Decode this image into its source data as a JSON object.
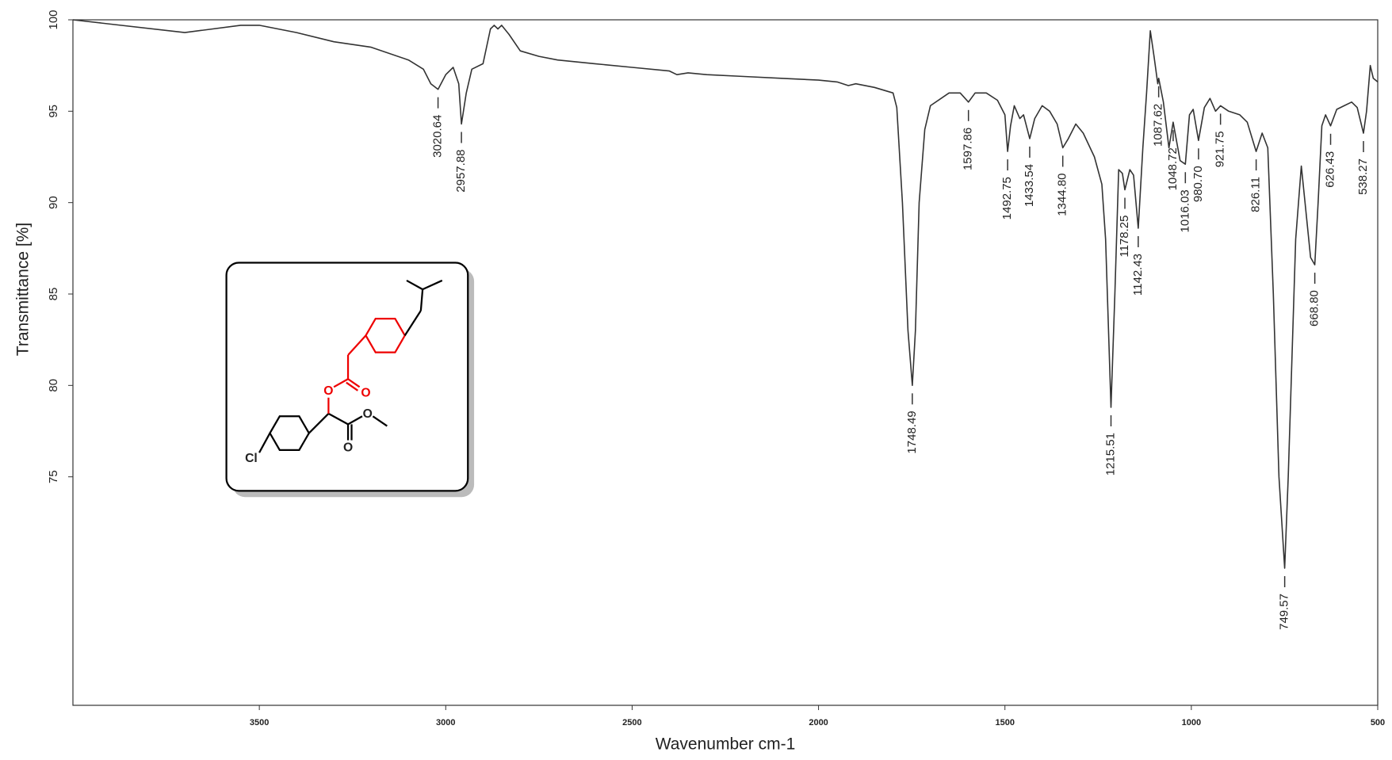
{
  "chart_data": {
    "type": "line",
    "xlabel": "Wavenumber cm-1",
    "ylabel": "Transmittance [%]",
    "xlim": [
      4000,
      500
    ],
    "ylim": [
      62.5,
      100
    ],
    "xticks": [
      3500,
      3000,
      2500,
      2000,
      1500,
      1000,
      500
    ],
    "yticks": [
      75,
      80,
      85,
      90,
      95,
      100
    ],
    "x": [
      4000,
      3700,
      3550,
      3500,
      3400,
      3300,
      3200,
      3100,
      3060,
      3040,
      3020.64,
      3000,
      2980,
      2965,
      2957.88,
      2945,
      2930,
      2900,
      2880,
      2870,
      2860,
      2850,
      2830,
      2800,
      2750,
      2700,
      2600,
      2500,
      2400,
      2380,
      2350,
      2300,
      2200,
      2100,
      2000,
      1950,
      1920,
      1900,
      1850,
      1800,
      1790,
      1775,
      1760,
      1748.49,
      1740,
      1730,
      1715,
      1700,
      1650,
      1620,
      1597.86,
      1580,
      1550,
      1520,
      1500,
      1492.75,
      1485,
      1475,
      1460,
      1450,
      1433.54,
      1420,
      1400,
      1380,
      1360,
      1344.8,
      1330,
      1310,
      1290,
      1260,
      1240,
      1230,
      1215.51,
      1205,
      1195,
      1185,
      1178.25,
      1165,
      1155,
      1142.43,
      1130,
      1120,
      1110,
      1100,
      1090,
      1087.62,
      1075,
      1060,
      1048.72,
      1030,
      1016.03,
      1005,
      995,
      980.7,
      965,
      950,
      935,
      921.75,
      900,
      870,
      850,
      826.11,
      810,
      795,
      780,
      765,
      749.57,
      740,
      720,
      705,
      695,
      680,
      668.8,
      660,
      650,
      640,
      626.43,
      610,
      590,
      570,
      555,
      538.27,
      530,
      520,
      512,
      500
    ],
    "series": [
      {
        "name": "spectrum",
        "color": "#333333",
        "values": [
          100,
          99.3,
          99.7,
          99.7,
          99.3,
          98.8,
          98.5,
          97.8,
          97.3,
          96.5,
          96.2,
          97.0,
          97.4,
          96.5,
          94.3,
          96,
          97.3,
          97.6,
          99.5,
          99.7,
          99.5,
          99.7,
          99.2,
          98.3,
          98.0,
          97.8,
          97.6,
          97.4,
          97.2,
          97.0,
          97.1,
          97.0,
          96.9,
          96.8,
          96.7,
          96.6,
          96.4,
          96.5,
          96.3,
          96.0,
          95.2,
          90,
          83,
          80,
          83,
          90,
          94,
          95.3,
          96,
          96.0,
          95.5,
          96,
          96.0,
          95.6,
          94.8,
          92.8,
          94.2,
          95.3,
          94.6,
          94.8,
          93.5,
          94.6,
          95.3,
          95.0,
          94.3,
          93.0,
          93.5,
          94.3,
          93.8,
          92.5,
          91,
          88,
          78.8,
          85,
          91.8,
          91.6,
          90.7,
          91.8,
          91.5,
          88.6,
          93,
          96,
          99.4,
          98,
          96.5,
          96.8,
          95.5,
          93.0,
          94.4,
          92.3,
          92.1,
          94.8,
          95.1,
          93.4,
          95.2,
          95.7,
          95.0,
          95.3,
          95.0,
          94.8,
          94.4,
          92.8,
          93.8,
          93.0,
          85,
          75,
          70,
          75,
          88,
          92,
          90,
          87,
          86.6,
          90,
          94.2,
          94.8,
          94.2,
          95.1,
          95.3,
          95.5,
          95.2,
          93.8,
          95,
          97.5,
          96.8,
          96.6
        ]
      }
    ],
    "annotations": [
      {
        "x": 3020.64,
        "label": "3020.64"
      },
      {
        "x": 2957.88,
        "label": "2957.88"
      },
      {
        "x": 1748.49,
        "label": "1748.49"
      },
      {
        "x": 1597.86,
        "label": "1597.86"
      },
      {
        "x": 1492.75,
        "label": "1492.75"
      },
      {
        "x": 1433.54,
        "label": "1433.54"
      },
      {
        "x": 1344.8,
        "label": "1344.80"
      },
      {
        "x": 1215.51,
        "label": "1215.51"
      },
      {
        "x": 1178.25,
        "label": "1178.25"
      },
      {
        "x": 1142.43,
        "label": "1142.43"
      },
      {
        "x": 1087.62,
        "label": "1087.62"
      },
      {
        "x": 1048.72,
        "label": "1048.72"
      },
      {
        "x": 1016.03,
        "label": "1016.03"
      },
      {
        "x": 980.7,
        "label": "980.70"
      },
      {
        "x": 921.75,
        "label": "921.75"
      },
      {
        "x": 826.11,
        "label": "826.11"
      },
      {
        "x": 749.57,
        "label": "749.57"
      },
      {
        "x": 668.8,
        "label": "668.80"
      },
      {
        "x": 626.43,
        "label": "626.43"
      },
      {
        "x": 538.27,
        "label": "538.27"
      }
    ]
  },
  "inset": {
    "atoms": [
      "O",
      "O",
      "O",
      "O",
      "Cl"
    ]
  }
}
